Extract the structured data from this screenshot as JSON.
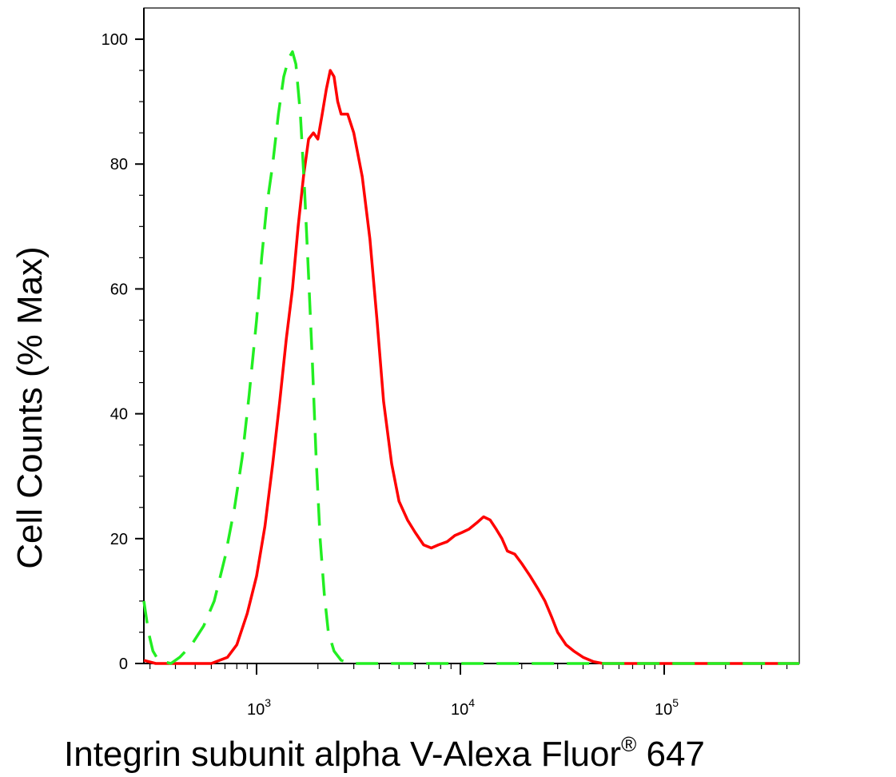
{
  "chart_data": {
    "type": "line",
    "xlabel": "Integrin subunit alpha V-Alexa Fluor",
    "xlabel_mark": "®",
    "xlabel_suffix": " 647",
    "ylabel": "Cell Counts (% Max)",
    "xscale": "log",
    "xlim": [
      280,
      460000
    ],
    "ylim": [
      0,
      105
    ],
    "yticks": [
      0,
      20,
      40,
      60,
      80,
      100
    ],
    "xticks": [
      {
        "value": 1000,
        "base": "10",
        "exp": "3"
      },
      {
        "value": 10000,
        "base": "10",
        "exp": "4"
      },
      {
        "value": 100000,
        "base": "10",
        "exp": "5"
      }
    ],
    "grid": false,
    "legend": "none",
    "series": [
      {
        "color": "#ff0000",
        "style": "solid",
        "points": [
          [
            280,
            0.5
          ],
          [
            320,
            0
          ],
          [
            450,
            0
          ],
          [
            600,
            0
          ],
          [
            720,
            1
          ],
          [
            800,
            3
          ],
          [
            900,
            8
          ],
          [
            1000,
            14
          ],
          [
            1100,
            22
          ],
          [
            1200,
            32
          ],
          [
            1300,
            42
          ],
          [
            1400,
            52
          ],
          [
            1500,
            60
          ],
          [
            1600,
            70
          ],
          [
            1700,
            78
          ],
          [
            1800,
            84
          ],
          [
            1900,
            85
          ],
          [
            2000,
            84
          ],
          [
            2100,
            88
          ],
          [
            2200,
            92
          ],
          [
            2300,
            95
          ],
          [
            2400,
            94
          ],
          [
            2500,
            90
          ],
          [
            2600,
            88
          ],
          [
            2800,
            88
          ],
          [
            3000,
            85
          ],
          [
            3300,
            78
          ],
          [
            3600,
            68
          ],
          [
            3900,
            55
          ],
          [
            4200,
            42
          ],
          [
            4600,
            32
          ],
          [
            5000,
            26
          ],
          [
            5500,
            23
          ],
          [
            6000,
            21
          ],
          [
            6600,
            19
          ],
          [
            7200,
            18.5
          ],
          [
            7800,
            19
          ],
          [
            8600,
            19.5
          ],
          [
            9400,
            20.5
          ],
          [
            10200,
            21
          ],
          [
            11000,
            21.5
          ],
          [
            12000,
            22.5
          ],
          [
            13000,
            23.5
          ],
          [
            14000,
            23
          ],
          [
            15000,
            21.5
          ],
          [
            16000,
            20
          ],
          [
            17000,
            18
          ],
          [
            18500,
            17.5
          ],
          [
            20000,
            16
          ],
          [
            22000,
            14
          ],
          [
            24000,
            12
          ],
          [
            26000,
            10
          ],
          [
            28000,
            7.5
          ],
          [
            30000,
            5
          ],
          [
            33000,
            3
          ],
          [
            36000,
            2
          ],
          [
            40000,
            1
          ],
          [
            45000,
            0.3
          ],
          [
            50000,
            0
          ],
          [
            100000,
            0
          ],
          [
            460000,
            0
          ]
        ]
      },
      {
        "color": "#22ee22",
        "style": "dashed",
        "points": [
          [
            280,
            10
          ],
          [
            295,
            5
          ],
          [
            310,
            2
          ],
          [
            330,
            0.5
          ],
          [
            380,
            0
          ],
          [
            420,
            1
          ],
          [
            480,
            3
          ],
          [
            550,
            6
          ],
          [
            620,
            10
          ],
          [
            700,
            17
          ],
          [
            780,
            25
          ],
          [
            850,
            33
          ],
          [
            920,
            43
          ],
          [
            1000,
            55
          ],
          [
            1060,
            65
          ],
          [
            1120,
            73
          ],
          [
            1200,
            80
          ],
          [
            1280,
            88
          ],
          [
            1360,
            94
          ],
          [
            1440,
            97
          ],
          [
            1500,
            98
          ],
          [
            1560,
            96
          ],
          [
            1640,
            88
          ],
          [
            1720,
            76
          ],
          [
            1800,
            62
          ],
          [
            1880,
            48
          ],
          [
            1960,
            33
          ],
          [
            2050,
            20
          ],
          [
            2150,
            11
          ],
          [
            2250,
            5
          ],
          [
            2400,
            2
          ],
          [
            2600,
            0.5
          ],
          [
            3000,
            0
          ],
          [
            10000,
            0
          ],
          [
            100000,
            0
          ],
          [
            460000,
            0
          ]
        ]
      }
    ]
  }
}
